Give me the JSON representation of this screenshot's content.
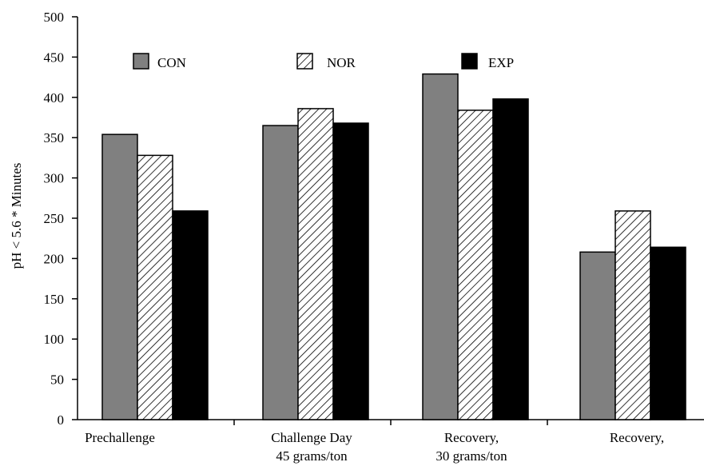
{
  "chart_data": {
    "type": "bar",
    "title": "",
    "xlabel": "",
    "ylabel": "pH < 5.6 * Minutes",
    "ylim": [
      0,
      500
    ],
    "yticks": [
      0,
      50,
      100,
      150,
      200,
      250,
      300,
      350,
      400,
      450,
      500
    ],
    "categories": [
      [
        "Prechallenge"
      ],
      [
        "Challenge Day",
        "45 grams/ton"
      ],
      [
        "Recovery,",
        "30 grams/ton"
      ],
      [
        "Recovery,"
      ]
    ],
    "series": [
      {
        "name": "CON",
        "values": [
          354,
          365,
          429,
          208
        ],
        "fill": "#808080",
        "pattern": "solid"
      },
      {
        "name": "NOR",
        "values": [
          328,
          386,
          384,
          259
        ],
        "fill": "#ffffff",
        "pattern": "hatch"
      },
      {
        "name": "EXP",
        "values": [
          259,
          368,
          398,
          214
        ],
        "fill": "#000000",
        "pattern": "solid"
      }
    ],
    "legend_position": "top",
    "grid": false
  }
}
